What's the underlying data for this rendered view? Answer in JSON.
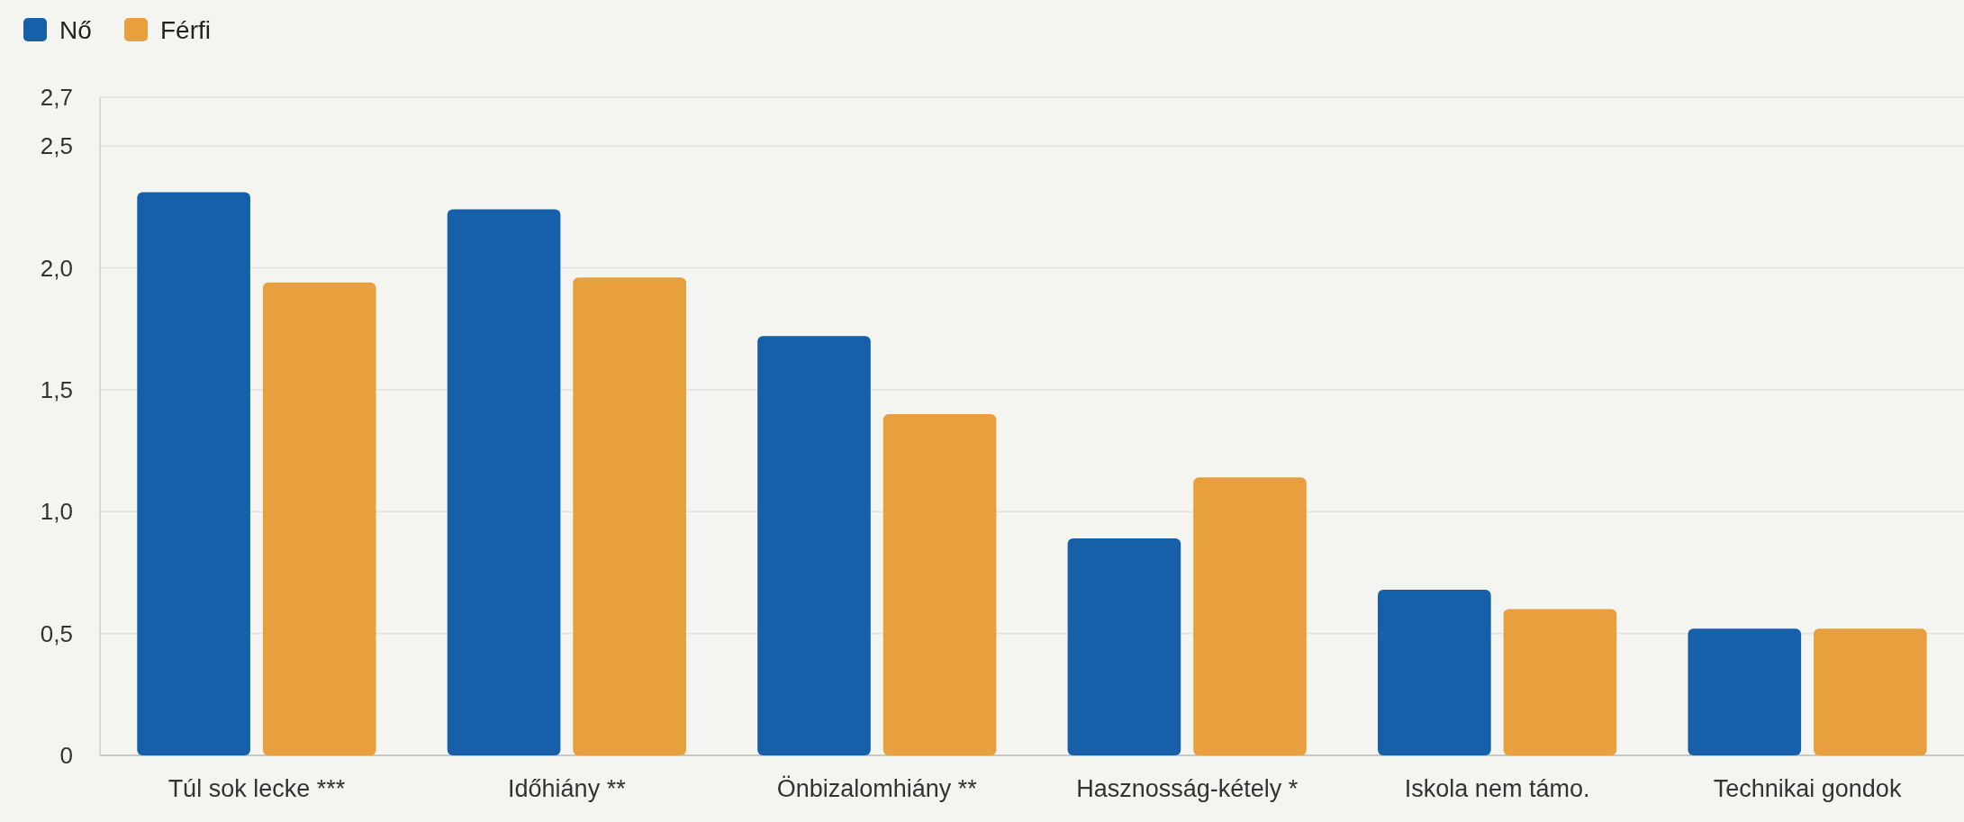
{
  "chart_data": {
    "type": "bar",
    "categories": [
      "Túl sok lecke ***",
      "Időhiány **",
      "Önbizalomhiány **",
      "Hasznosság-kétely *",
      "Iskola nem támo.",
      "Technikai gondok"
    ],
    "series": [
      {
        "name": "Nő",
        "color": "#1560a8",
        "values": [
          2.31,
          2.24,
          1.72,
          0.89,
          0.68,
          0.52
        ]
      },
      {
        "name": "Férfi",
        "color": "#e89f3e",
        "values": [
          1.94,
          1.96,
          1.4,
          1.14,
          0.6,
          0.52
        ]
      }
    ],
    "ylim": [
      0,
      2.7
    ],
    "yticks": [
      {
        "value": 0,
        "label": "0"
      },
      {
        "value": 0.5,
        "label": "0,5"
      },
      {
        "value": 1,
        "label": "1,0"
      },
      {
        "value": 1.5,
        "label": "1,5"
      },
      {
        "value": 2,
        "label": "2,0"
      },
      {
        "value": 2.5,
        "label": "2,5"
      },
      {
        "value": 2.7,
        "label": "2,7"
      }
    ],
    "grid": true,
    "legend": "top left"
  }
}
